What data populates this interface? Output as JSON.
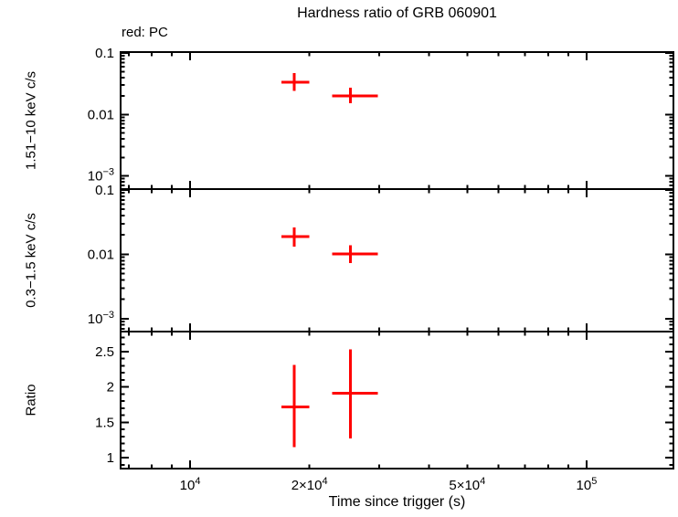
{
  "title": "Hardness ratio of GRB 060901",
  "mode_label": "red: PC",
  "colors": {
    "data": "#ff0000",
    "axis": "#000000",
    "text": "#000000",
    "background": "#ffffff"
  },
  "x_axis": {
    "label": "Time since trigger (s)",
    "scale": "log",
    "range": [
      6680,
      165600
    ],
    "major_ticks": [
      10000,
      100000
    ],
    "minor_ticks": [
      7000,
      8000,
      9000,
      20000,
      30000,
      40000,
      50000,
      60000,
      70000,
      80000,
      90000
    ],
    "tick_labels": [
      {
        "value": 10000,
        "pre": "",
        "base": "10",
        "sup": "4"
      },
      {
        "value": 20000,
        "pre": "2×",
        "base": "10",
        "sup": "4"
      },
      {
        "value": 50000,
        "pre": "5×",
        "base": "10",
        "sup": "4"
      },
      {
        "value": 100000,
        "pre": "",
        "base": "10",
        "sup": "5"
      }
    ]
  },
  "chart_data": {
    "type": "scatter",
    "series_name": "PC",
    "series_color": "#ff0000",
    "grid": false,
    "panels": [
      {
        "id": "hard-band",
        "ylabel": "1.51−10 keV c/s",
        "y_scale": "log",
        "y_range": [
          0.00061,
          0.1035
        ],
        "y_major_ticks": [
          0.1,
          0.01,
          0.001
        ],
        "y_minor_ticks": [
          0.09,
          0.08,
          0.07,
          0.06,
          0.05,
          0.04,
          0.03,
          0.02,
          0.009,
          0.008,
          0.007,
          0.006,
          0.005,
          0.004,
          0.003,
          0.002,
          0.0009,
          0.0008,
          0.0007
        ],
        "y_tick_labels": [
          {
            "value": 0.1,
            "label": "0.1"
          },
          {
            "value": 0.01,
            "label": "0.01"
          },
          {
            "value": 0.001,
            "base": "10",
            "sup": "−3"
          }
        ],
        "points": [
          {
            "x": 18300,
            "x_lo": 17000,
            "x_hi": 19970,
            "y": 0.0335,
            "y_lo": 0.0243,
            "y_hi": 0.0468
          },
          {
            "x": 25350,
            "x_lo": 22800,
            "x_hi": 29720,
            "y": 0.02,
            "y_lo": 0.0151,
            "y_hi": 0.0271
          }
        ]
      },
      {
        "id": "soft-band",
        "ylabel": "0.3−1.5 keV c/s",
        "y_scale": "log",
        "y_range": [
          0.00063,
          0.1033
        ],
        "y_major_ticks": [
          0.1,
          0.01,
          0.001
        ],
        "y_minor_ticks": [
          0.09,
          0.08,
          0.07,
          0.06,
          0.05,
          0.04,
          0.03,
          0.02,
          0.009,
          0.008,
          0.007,
          0.006,
          0.005,
          0.004,
          0.003,
          0.002,
          0.0009,
          0.0008,
          0.0007
        ],
        "y_tick_labels": [
          {
            "value": 0.1,
            "label": "0.1"
          },
          {
            "value": 0.01,
            "label": "0.01"
          },
          {
            "value": 0.001,
            "base": "10",
            "sup": "−3"
          }
        ],
        "points": [
          {
            "x": 18300,
            "x_lo": 17000,
            "x_hi": 19970,
            "y": 0.019,
            "y_lo": 0.0132,
            "y_hi": 0.026
          },
          {
            "x": 25350,
            "x_lo": 22800,
            "x_hi": 29720,
            "y": 0.0101,
            "y_lo": 0.0073,
            "y_hi": 0.0139
          }
        ]
      },
      {
        "id": "ratio",
        "ylabel": "Ratio",
        "y_scale": "linear",
        "y_range": [
          0.846,
          2.784
        ],
        "y_major_ticks": [
          2.5,
          2,
          1.5,
          1
        ],
        "y_minor_ticks": [
          2.7,
          2.6,
          2.4,
          2.3,
          2.2,
          2.1,
          1.9,
          1.8,
          1.7,
          1.6,
          1.4,
          1.3,
          1.2,
          1.1,
          0.9
        ],
        "y_tick_labels": [
          {
            "value": 2.5,
            "label": "2.5"
          },
          {
            "value": 2,
            "label": "2"
          },
          {
            "value": 1.5,
            "label": "1.5"
          },
          {
            "value": 1,
            "label": "1"
          }
        ],
        "points": [
          {
            "x": 18300,
            "x_lo": 17000,
            "x_hi": 19970,
            "y": 1.72,
            "y_lo": 1.15,
            "y_hi": 2.31
          },
          {
            "x": 25350,
            "x_lo": 22800,
            "x_hi": 29720,
            "y": 1.91,
            "y_lo": 1.27,
            "y_hi": 2.53
          }
        ]
      }
    ]
  }
}
